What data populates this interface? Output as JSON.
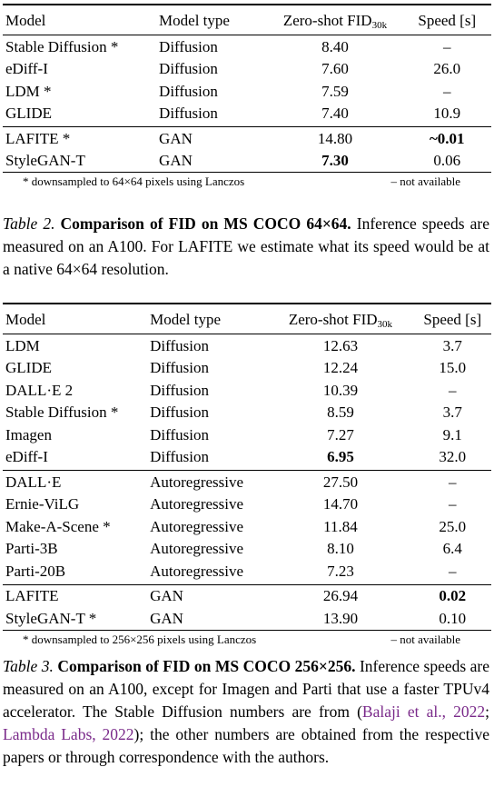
{
  "table2": {
    "headers": [
      "Model",
      "Model type",
      "Zero-shot FID",
      "30k",
      "Speed [s]"
    ],
    "groups": [
      [
        {
          "model": "Stable Diffusion *",
          "type": "Diffusion",
          "fid": "8.40",
          "speed": "–"
        },
        {
          "model": "eDiff-I",
          "type": "Diffusion",
          "fid": "7.60",
          "speed": "26.0"
        },
        {
          "model": "LDM *",
          "type": "Diffusion",
          "fid": "7.59",
          "speed": "–"
        },
        {
          "model": "GLIDE",
          "type": "Diffusion",
          "fid": "7.40",
          "speed": "10.9"
        }
      ],
      [
        {
          "model": "LAFITE *",
          "type": "GAN",
          "fid": "14.80",
          "speed": "~0.01"
        },
        {
          "model": "StyleGAN-T",
          "type": "GAN",
          "fid": "7.30",
          "speed": "0.06"
        }
      ]
    ],
    "footnote_left": "* downsampled to 64×64 pixels using Lanczos",
    "footnote_right": "– not available",
    "caption_label": "Table 2.",
    "caption_bold": "Comparison of FID on MS COCO 64×64.",
    "caption_text": "Inference speeds are measured on an A100. For LAFITE we estimate what its speed would be at a native 64×64 resolution."
  },
  "table3": {
    "headers": [
      "Model",
      "Model type",
      "Zero-shot FID",
      "30k",
      "Speed [s]"
    ],
    "groups": [
      [
        {
          "model": "LDM",
          "type": "Diffusion",
          "fid": "12.63",
          "speed": "3.7"
        },
        {
          "model": "GLIDE",
          "type": "Diffusion",
          "fid": "12.24",
          "speed": "15.0"
        },
        {
          "model": "DALL·E 2",
          "type": "Diffusion",
          "fid": "10.39",
          "speed": "–"
        },
        {
          "model": "Stable Diffusion *",
          "type": "Diffusion",
          "fid": "8.59",
          "speed": "3.7"
        },
        {
          "model": "Imagen",
          "type": "Diffusion",
          "fid": "7.27",
          "speed": "9.1"
        },
        {
          "model": "eDiff-I",
          "type": "Diffusion",
          "fid": "6.95",
          "speed": "32.0"
        }
      ],
      [
        {
          "model": "DALL·E",
          "type": "Autoregressive",
          "fid": "27.50",
          "speed": "–"
        },
        {
          "model": "Ernie-ViLG",
          "type": "Autoregressive",
          "fid": "14.70",
          "speed": "–"
        },
        {
          "model": "Make-A-Scene *",
          "type": "Autoregressive",
          "fid": "11.84",
          "speed": "25.0"
        },
        {
          "model": "Parti-3B",
          "type": "Autoregressive",
          "fid": "8.10",
          "speed": "6.4"
        },
        {
          "model": "Parti-20B",
          "type": "Autoregressive",
          "fid": "7.23",
          "speed": "–"
        }
      ],
      [
        {
          "model": "LAFITE",
          "type": "GAN",
          "fid": "26.94",
          "speed": "0.02"
        },
        {
          "model": "StyleGAN-T *",
          "type": "GAN",
          "fid": "13.90",
          "speed": "0.10"
        }
      ]
    ],
    "footnote_left": "* downsampled to 256×256 pixels using Lanczos",
    "footnote_right": "– not available",
    "caption_label": "Table 3.",
    "caption_bold": "Comparison of FID on MS COCO 256×256.",
    "caption_text_1": "Inference speeds are measured on an A100, except for Imagen and Parti that use a faster TPUv4 accelerator. The Stable Diffusion numbers are from (",
    "cite_1": "Balaji et al., 2022",
    "cite_sep": "; ",
    "cite_2": "Lambda Labs, 2022",
    "caption_text_2": "); the other numbers are obtained from the respective papers or through correspondence with the authors."
  }
}
